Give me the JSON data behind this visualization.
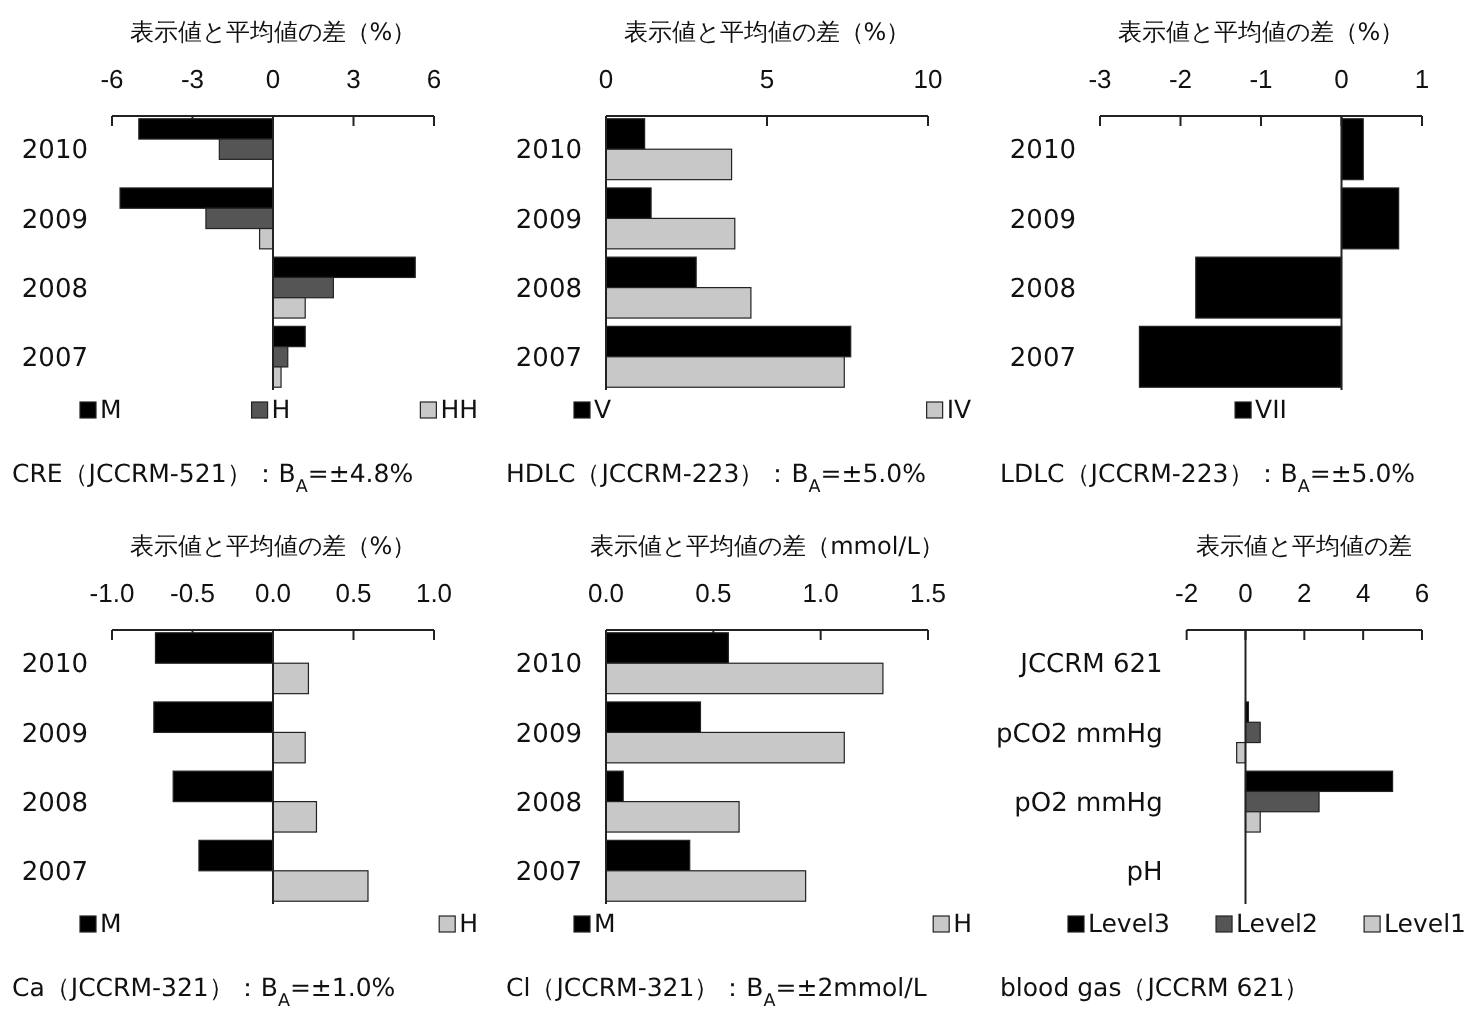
{
  "chart_data": [
    {
      "type": "bar",
      "orientation": "horizontal",
      "xlabel": "表示値と平均値の差（%）",
      "title": "CRE（JCCRM-521）：B$_{A}$=±4.8%",
      "categories": [
        "2010",
        "2009",
        "2008",
        "2007"
      ],
      "xlim": [
        -6,
        6
      ],
      "xticks": [
        -6,
        -3,
        0,
        3,
        6
      ],
      "legend": "bottom",
      "series": [
        {
          "name": "M",
          "color": "#000000",
          "values": [
            -5.0,
            -5.7,
            5.3,
            1.2
          ]
        },
        {
          "name": "H",
          "color": "#555555",
          "values": [
            -2.0,
            -2.5,
            2.25,
            0.55
          ]
        },
        {
          "name": "HH",
          "color": "#c8c8c8",
          "values": [
            null,
            -0.5,
            1.2,
            0.3
          ]
        }
      ]
    },
    {
      "type": "bar",
      "orientation": "horizontal",
      "xlabel": "表示値と平均値の差（%）",
      "title": "HDLC（JCCRM-223）：B$_{A}$=±5.0%",
      "categories": [
        "2010",
        "2009",
        "2008",
        "2007"
      ],
      "xlim": [
        0,
        10
      ],
      "xticks": [
        0,
        5,
        10
      ],
      "legend": "bottom",
      "series": [
        {
          "name": "V",
          "color": "#000000",
          "values": [
            1.2,
            1.4,
            2.8,
            7.6
          ]
        },
        {
          "name": "IV",
          "color": "#c8c8c8",
          "values": [
            3.9,
            4.0,
            4.5,
            7.4
          ]
        }
      ]
    },
    {
      "type": "bar",
      "orientation": "horizontal",
      "xlabel": "表示値と平均値の差（%）",
      "title": "LDLC（JCCRM-223）：B$_{A}$=±5.0%",
      "categories": [
        "2010",
        "2009",
        "2008",
        "2007"
      ],
      "xlim": [
        -3,
        1
      ],
      "xticks": [
        -3,
        -2,
        -1,
        0,
        1
      ],
      "legend": "bottom",
      "series": [
        {
          "name": "VII",
          "color": "#000000",
          "values": [
            0.27,
            0.71,
            -1.81,
            -2.51
          ]
        }
      ]
    },
    {
      "type": "bar",
      "orientation": "horizontal",
      "xlabel": "表示値と平均値の差（%）",
      "title": "Ca（JCCRM-321）：B$_{A}$=±1.0%",
      "categories": [
        "2010",
        "2009",
        "2008",
        "2007"
      ],
      "xlim": [
        -1,
        1
      ],
      "xticks": [
        {
          "value": -1,
          "label": "-1.0"
        },
        {
          "value": -0.5,
          "label": "-0.5"
        },
        {
          "value": 0,
          "label": "0.0"
        },
        {
          "value": 0.5,
          "label": "0.5"
        },
        {
          "value": 1,
          "label": "1.0"
        }
      ],
      "legend": "bottom",
      "series": [
        {
          "name": "M",
          "color": "#000000",
          "values": [
            -0.73,
            -0.74,
            -0.62,
            -0.46
          ]
        },
        {
          "name": "H",
          "color": "#c8c8c8",
          "values": [
            0.22,
            0.2,
            0.27,
            0.59
          ]
        }
      ]
    },
    {
      "type": "bar",
      "orientation": "horizontal",
      "xlabel": "表示値と平均値の差（mmol/L）",
      "title": "Cl（JCCRM-321）：B$_{A}$=±2mmol/L",
      "categories": [
        "2010",
        "2009",
        "2008",
        "2007"
      ],
      "xlim": [
        0,
        1.5
      ],
      "xticks": [
        {
          "value": 0,
          "label": "0.0"
        },
        {
          "value": 0.5,
          "label": "0.5"
        },
        {
          "value": 1,
          "label": "1.0"
        },
        {
          "value": 1.5,
          "label": "1.5"
        }
      ],
      "legend": "bottom",
      "series": [
        {
          "name": "M",
          "color": "#000000",
          "values": [
            0.57,
            0.44,
            0.08,
            0.39
          ]
        },
        {
          "name": "H",
          "color": "#c8c8c8",
          "values": [
            1.29,
            1.11,
            0.62,
            0.93
          ]
        }
      ]
    },
    {
      "type": "bar",
      "orientation": "horizontal",
      "xlabel": "表示値と平均値の差",
      "title": "blood gas（JCCRM 621）",
      "categories": [
        "JCCRM 621",
        "pCO2 mmHg",
        "pO2 mmHg",
        "pH"
      ],
      "xlim": [
        -2,
        6
      ],
      "xticks": [
        -2,
        0,
        2,
        4,
        6
      ],
      "legend": "bottom",
      "series": [
        {
          "name": "Level3",
          "color": "#000000",
          "values": [
            null,
            0.1,
            5.0,
            null
          ]
        },
        {
          "name": "Level2",
          "color": "#555555",
          "values": [
            null,
            0.5,
            2.5,
            null
          ]
        },
        {
          "name": "Level1",
          "color": "#c8c8c8",
          "values": [
            null,
            -0.3,
            0.5,
            null
          ]
        }
      ]
    }
  ]
}
